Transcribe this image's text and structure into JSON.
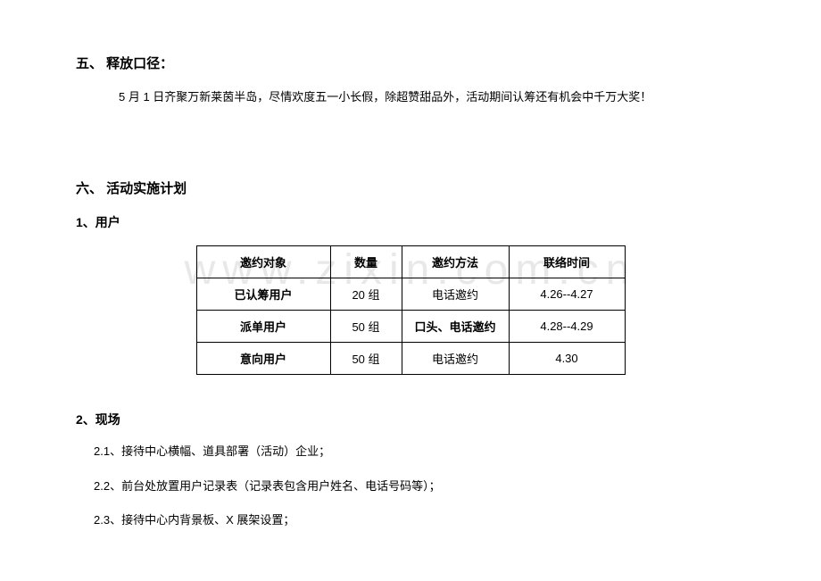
{
  "section5": {
    "heading": "五、   释放口径：",
    "body": "5 月 1 日齐聚万新莱茵半岛，尽情欢度五一小长假，除超赞甜品外，活动期间认筹还有机会中千万大奖！"
  },
  "section6": {
    "heading": "六、   活动实施计划",
    "sub1": {
      "heading": "1、用户",
      "table": {
        "headers": [
          "邀约对象",
          "数量",
          "邀约方法",
          "联络时间"
        ],
        "col_widths": [
          "150px",
          "80px",
          "120px",
          "130px"
        ],
        "rows": [
          {
            "target": "已认筹用户",
            "quantity": "20 组",
            "method": "电话邀约",
            "time": "4.26--4.27",
            "target_bold": true,
            "method_bold": false
          },
          {
            "target": "派单用户",
            "quantity": "50 组",
            "method": "口头、电话邀约",
            "time": "4.28--4.29",
            "target_bold": true,
            "method_bold": true
          },
          {
            "target": "意向用户",
            "quantity": "50 组",
            "method": "电话邀约",
            "time": "4.30",
            "target_bold": true,
            "method_bold": false
          }
        ]
      }
    },
    "sub2": {
      "heading": "2、现场",
      "items": [
        "2.1、接待中心横幅、道具部署（活动）企业；",
        "2.2、前台处放置用户记录表（记录表包含用户姓名、电话号码等）；",
        "2.3、接待中心内背景板、X 展架设置；"
      ]
    }
  },
  "watermark": "www.zixin.com.cn",
  "colors": {
    "text": "#000000",
    "background": "#ffffff",
    "border": "#000000",
    "watermark": "#e8e8e8"
  },
  "typography": {
    "heading_fontsize": 15,
    "subheading_fontsize": 14,
    "body_fontsize": 13,
    "watermark_fontsize": 48
  }
}
